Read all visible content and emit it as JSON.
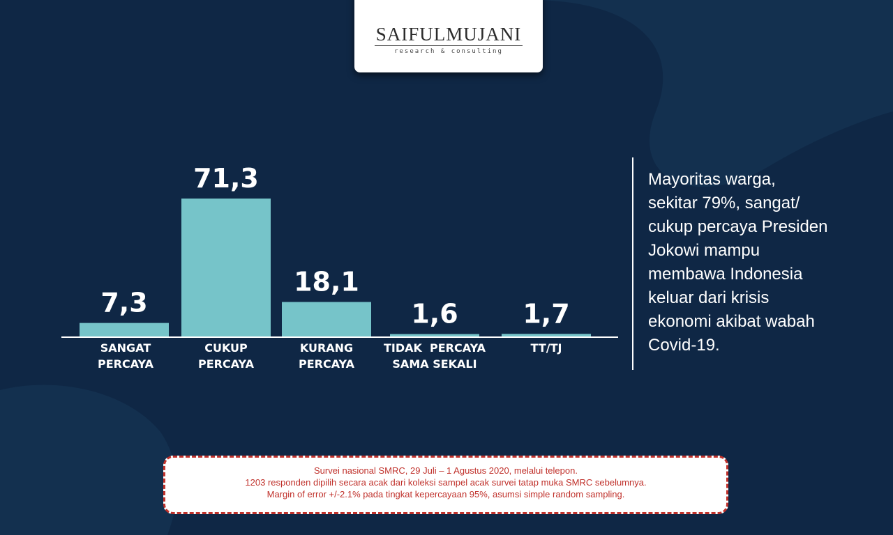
{
  "logo": {
    "name": "SAIFULMUJANI",
    "tagline": "research & consulting"
  },
  "chart_data": {
    "type": "bar",
    "categories": [
      [
        "SANGAT",
        "PERCAYA"
      ],
      [
        "CUKUP",
        "PERCAYA"
      ],
      [
        "KURANG",
        "PERCAYA"
      ],
      [
        "TIDAK  PERCAYA",
        "SAMA SEKALI"
      ],
      [
        "TT/TJ"
      ]
    ],
    "values": [
      7.3,
      71.3,
      18.1,
      1.6,
      1.7
    ],
    "value_labels": [
      "7,3",
      "71,3",
      "18,1",
      "1,6",
      "1,7"
    ],
    "ylim": [
      0,
      71.3
    ],
    "grid": false,
    "bar_color": "#76c4c9"
  },
  "summary": {
    "lines": [
      "Mayoritas warga,",
      "sekitar 79%, sangat/",
      "cukup percaya Presiden",
      "Jokowi mampu",
      "membawa Indonesia",
      "keluar dari krisis",
      "ekonomi akibat wabah",
      "Covid-19."
    ]
  },
  "footnote": {
    "lines": [
      "Survei nasional SMRC, 29 Juli – 1 Agustus 2020, melalui telepon.",
      "1203 responden dipilih secara acak dari koleksi sampel acak survei tatap muka SMRC sebelumnya.",
      "Margin of error +/-2.1% pada tingkat kepercayaan 95%, asumsi simple random sampling."
    ]
  },
  "colors": {
    "background": "#0f2745",
    "accent": "#76c4c9",
    "footnote_text": "#c0312b"
  }
}
